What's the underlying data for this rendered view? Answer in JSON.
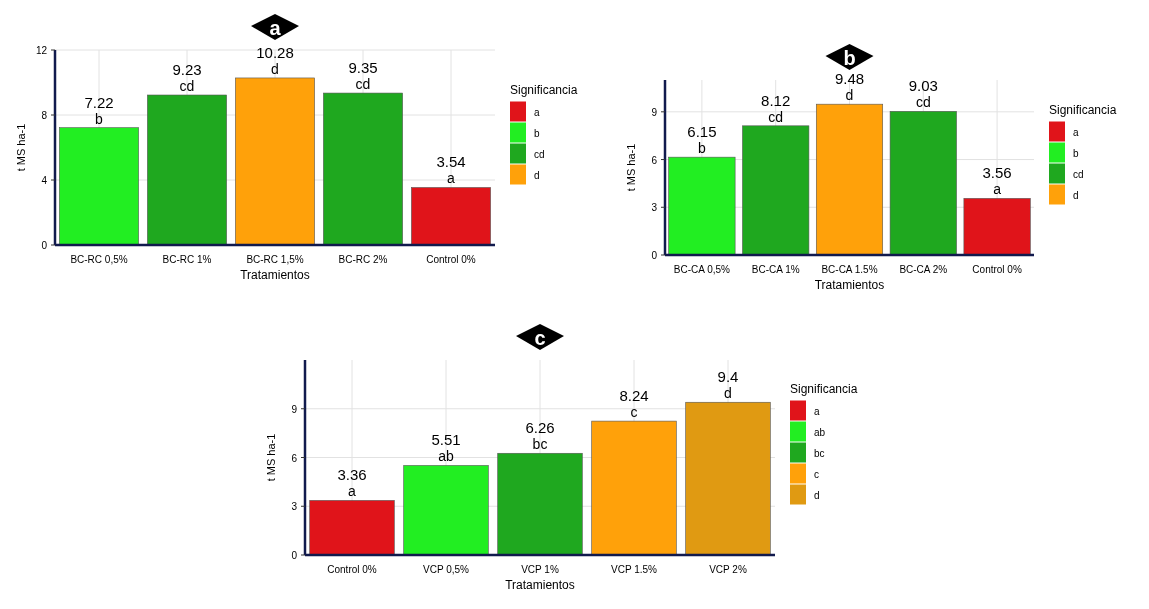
{
  "chart_data": [
    {
      "type": "bar",
      "title": "a",
      "xlabel": "Tratamientos",
      "ylabel": "t MS ha-1",
      "legend_title": "Significancia",
      "categories": [
        "BC-RC 0,5%",
        "BC-RC 1%",
        "BC-RC 1,5%",
        "BC-RC 2%",
        "Control 0%"
      ],
      "stacked": true,
      "data_labels": true,
      "grid": true,
      "legend": "right",
      "ylim": [
        0,
        12
      ],
      "yticks": [
        0,
        4,
        8,
        12
      ],
      "series": [
        {
          "name": "a",
          "color": "#e0141a",
          "values": [
            null,
            null,
            null,
            null,
            3.54
          ]
        },
        {
          "name": "b",
          "color": "#22ee22",
          "values": [
            7.22,
            null,
            null,
            null,
            null
          ]
        },
        {
          "name": "cd",
          "color": "#1fa81f",
          "values": [
            null,
            9.23,
            null,
            9.35,
            null
          ]
        },
        {
          "name": "d",
          "color": "#ffa10a",
          "values": [
            null,
            null,
            10.28,
            null,
            null
          ]
        }
      ]
    },
    {
      "type": "bar",
      "title": "b",
      "xlabel": "Tratamientos",
      "ylabel": "t MS ha-1",
      "legend_title": "Significancia",
      "categories": [
        "BC-CA 0,5%",
        "BC-CA 1%",
        "BC-CA 1.5%",
        "BC-CA 2%",
        "Control 0%"
      ],
      "stacked": true,
      "data_labels": true,
      "grid": true,
      "legend": "right",
      "ylim": [
        0,
        11
      ],
      "yticks": [
        0,
        3,
        6,
        9
      ],
      "series": [
        {
          "name": "a",
          "color": "#e0141a",
          "values": [
            null,
            null,
            null,
            null,
            3.56
          ]
        },
        {
          "name": "b",
          "color": "#22ee22",
          "values": [
            6.15,
            null,
            null,
            null,
            null
          ]
        },
        {
          "name": "cd",
          "color": "#1fa81f",
          "values": [
            null,
            8.12,
            null,
            9.03,
            null
          ]
        },
        {
          "name": "d",
          "color": "#ffa10a",
          "values": [
            null,
            null,
            9.48,
            null,
            null
          ]
        }
      ]
    },
    {
      "type": "bar",
      "title": "c",
      "xlabel": "Tratamientos",
      "ylabel": "t MS ha-1",
      "legend_title": "Significancia",
      "categories": [
        "Control 0%",
        "VCP 0,5%",
        "VCP 1%",
        "VCP 1.5%",
        "VCP 2%"
      ],
      "stacked": true,
      "data_labels": true,
      "grid": true,
      "legend": "right",
      "ylim": [
        0,
        12
      ],
      "yticks": [
        0,
        3,
        6,
        9
      ],
      "series": [
        {
          "name": "a",
          "color": "#e0141a",
          "values": [
            3.36,
            null,
            null,
            null,
            null
          ]
        },
        {
          "name": "ab",
          "color": "#22ee22",
          "values": [
            null,
            5.51,
            null,
            null,
            null
          ]
        },
        {
          "name": "bc",
          "color": "#1fa81f",
          "values": [
            null,
            null,
            6.26,
            null,
            null
          ]
        },
        {
          "name": "c",
          "color": "#ffa10a",
          "values": [
            null,
            null,
            null,
            8.24,
            null
          ]
        },
        {
          "name": "d",
          "color": "#e09a12",
          "values": [
            null,
            null,
            null,
            null,
            9.4
          ]
        }
      ]
    }
  ]
}
